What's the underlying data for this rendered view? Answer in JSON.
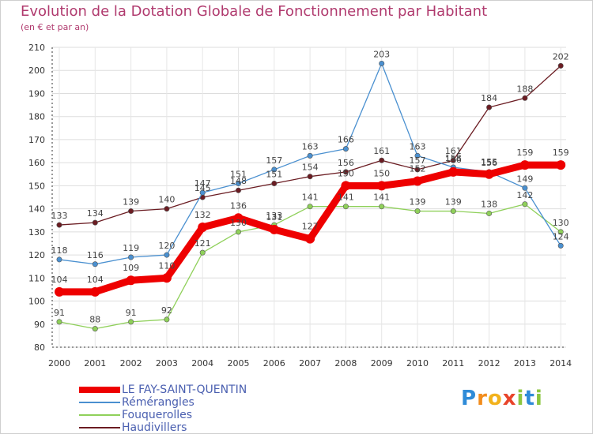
{
  "chart_data": {
    "type": "line",
    "title": "Evolution de la Dotation Globale de Fonctionnement par Habitant",
    "subtitle": "(en € et par an)",
    "xlabel": "",
    "ylabel": "",
    "ylim": [
      80,
      210
    ],
    "yticks": [
      80,
      90,
      100,
      110,
      120,
      130,
      140,
      150,
      160,
      170,
      180,
      190,
      200,
      210
    ],
    "grid": true,
    "legend_position": "bottom-left",
    "categories": [
      "2000",
      "2001",
      "2002",
      "2003",
      "2004",
      "2005",
      "2006",
      "2007",
      "2008",
      "2009",
      "2010",
      "2011",
      "2012",
      "2013",
      "2014"
    ],
    "series": [
      {
        "name": "Haudivillers",
        "color": "#6b1c22",
        "values": [
          133,
          134,
          139,
          140,
          145,
          148,
          151,
          154,
          156,
          161,
          157,
          161,
          184,
          188,
          202
        ]
      },
      {
        "name": "Fouquerolles",
        "color": "#8fd05a",
        "values": [
          91,
          88,
          91,
          92,
          121,
          130,
          133,
          141,
          141,
          141,
          139,
          139,
          138,
          142,
          130
        ]
      },
      {
        "name": "Rémérangles",
        "color": "#4a90d0",
        "values": [
          118,
          116,
          119,
          120,
          147,
          151,
          157,
          163,
          166,
          203,
          163,
          158,
          156,
          149,
          124
        ]
      },
      {
        "name": "LE FAY-SAINT-QUENTIN",
        "color": "#ee0000",
        "values": [
          104,
          104,
          109,
          110,
          132,
          136,
          131,
          127,
          150,
          150,
          152,
          156,
          155,
          159,
          159
        ]
      }
    ]
  },
  "legend": {
    "items": [
      {
        "label": "LE FAY-SAINT-QUENTIN",
        "color": "#ee0000"
      },
      {
        "label": "Rémérangles",
        "color": "#4a90d0"
      },
      {
        "label": "Fouquerolles",
        "color": "#8fd05a"
      },
      {
        "label": "Haudivillers",
        "color": "#6b1c22"
      }
    ]
  },
  "logo": {
    "letters": [
      {
        "ch": "P",
        "color": "#2e8bd8"
      },
      {
        "ch": "r",
        "color": "#f28c1c"
      },
      {
        "ch": "o",
        "color": "#f2b21c"
      },
      {
        "ch": "x",
        "color": "#e8442a"
      },
      {
        "ch": "i",
        "color": "#8cc63f"
      },
      {
        "ch": "t",
        "color": "#2e8bd8"
      },
      {
        "ch": "i",
        "color": "#8cc63f"
      }
    ]
  }
}
